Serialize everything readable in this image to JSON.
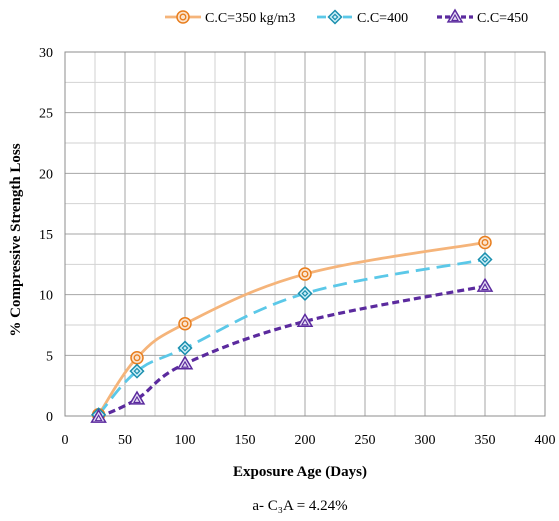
{
  "chart_data": {
    "type": "line",
    "xlabel": "Exposure Age (Days)",
    "ylabel": "% Compressive Strength Loss",
    "xlim": [
      0,
      400
    ],
    "ylim": [
      0,
      30
    ],
    "x_ticks": [
      0,
      50,
      100,
      150,
      200,
      250,
      300,
      350,
      400
    ],
    "y_ticks": [
      0,
      5,
      10,
      15,
      20,
      25,
      30
    ],
    "x_minor_step": 25,
    "y_minor_step": 2.5,
    "grid": true,
    "legend_position": "top-right",
    "caption": "a-    C₃A = 4.24%",
    "series": [
      {
        "name": "C.C=350 kg/m3",
        "color": "#F5B47A",
        "marker": "circle",
        "marker_color": "#E87E1E",
        "dash": "solid",
        "x": [
          28,
          60,
          100,
          200,
          350
        ],
        "y": [
          0.1,
          4.8,
          7.6,
          11.7,
          14.3
        ]
      },
      {
        "name": "C.C=400",
        "color": "#5BC8E8",
        "marker": "diamond",
        "marker_color": "#1B8FAE",
        "dash": "long-dash",
        "x": [
          28,
          60,
          100,
          200,
          350
        ],
        "y": [
          0.1,
          3.7,
          5.6,
          10.1,
          12.9
        ]
      },
      {
        "name": "C.C=450",
        "color": "#5B2A9E",
        "marker": "triangle",
        "marker_color": "#5B2A9E",
        "dash": "short-dash",
        "x": [
          28,
          60,
          100,
          200,
          350
        ],
        "y": [
          -0.1,
          1.4,
          4.3,
          7.8,
          10.7
        ]
      }
    ]
  }
}
